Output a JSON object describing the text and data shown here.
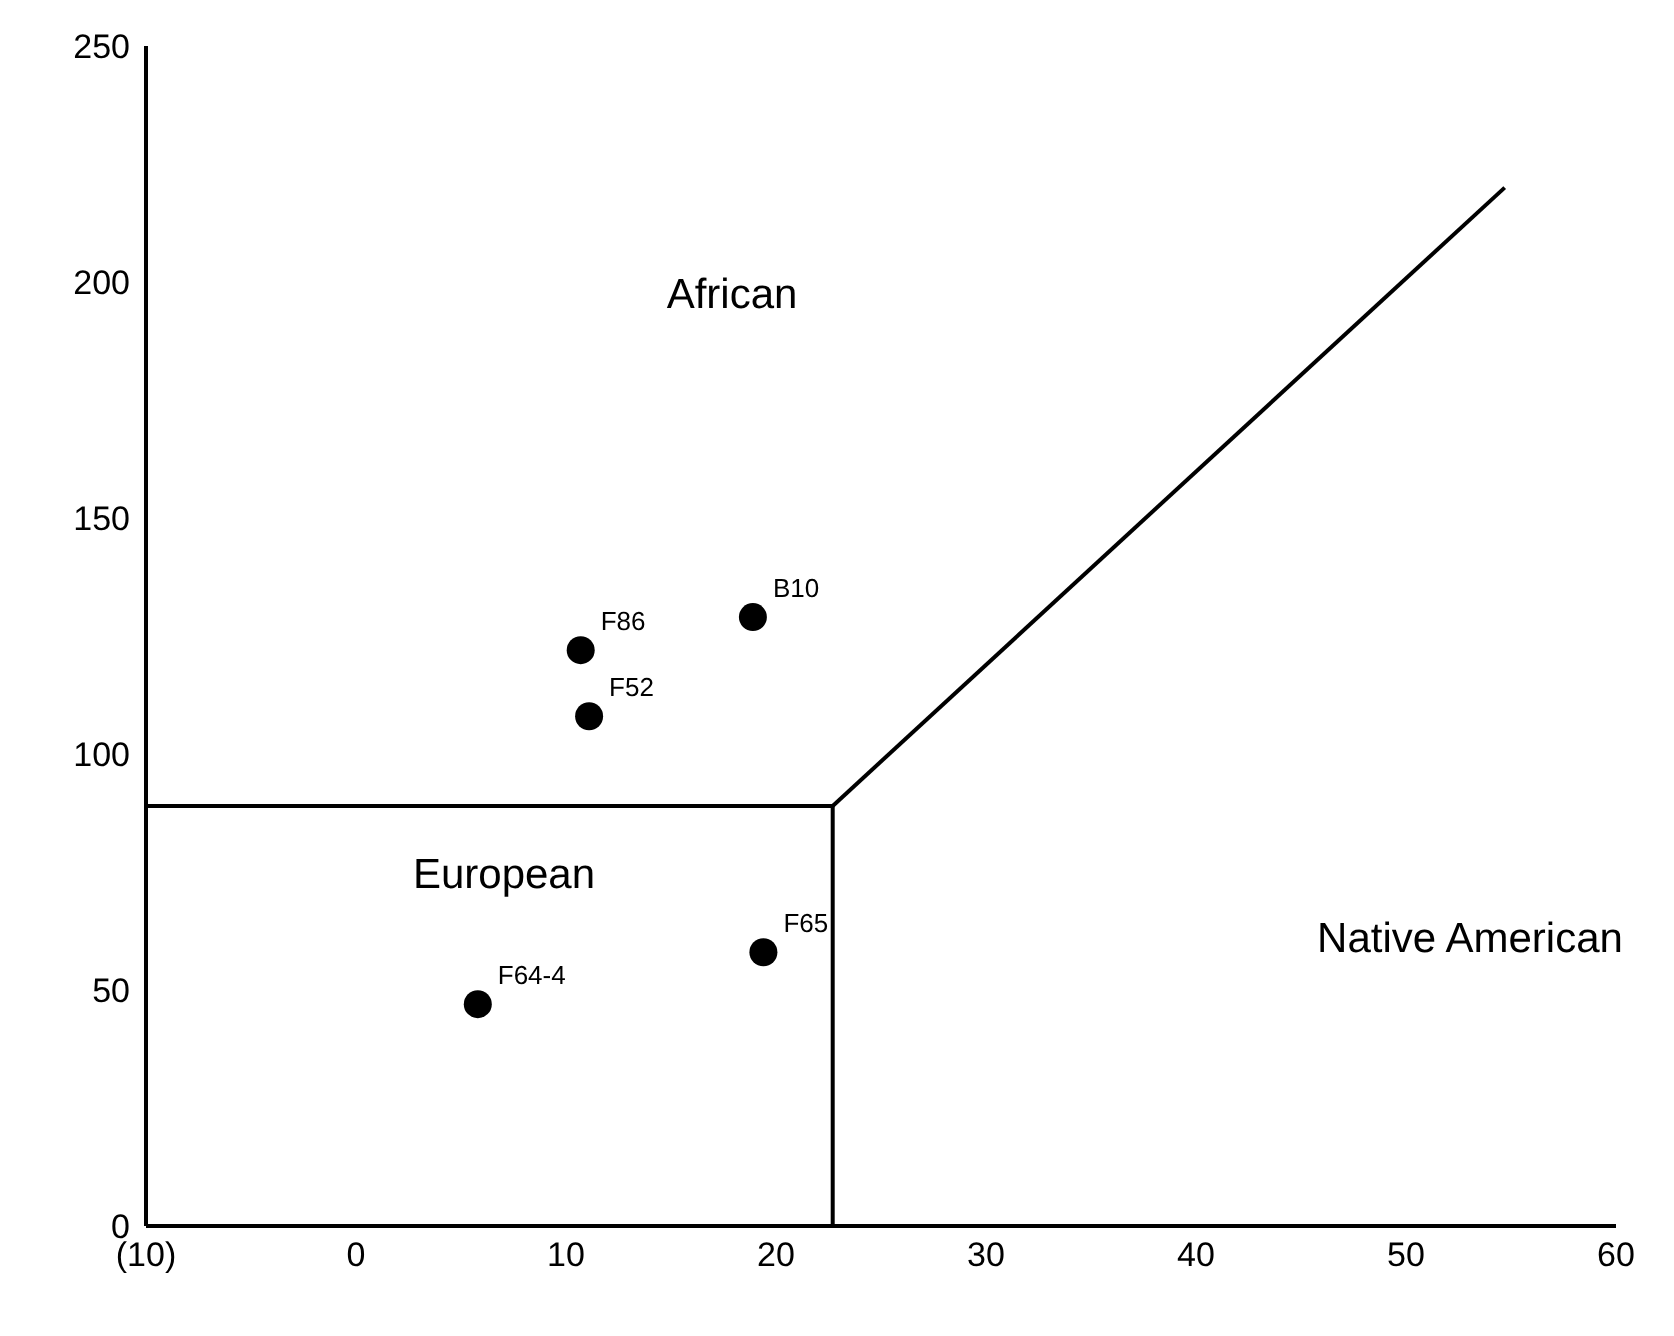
{
  "chart_data": {
    "type": "scatter",
    "xlim": [
      -10,
      60
    ],
    "xticks": [
      {
        "value": -10,
        "label": "(10)"
      },
      0,
      10,
      20,
      30,
      40,
      50,
      60
    ],
    "ylim": [
      0,
      250
    ],
    "yticks": [
      0,
      50,
      100,
      150,
      200,
      250
    ],
    "grid": false,
    "legend": false,
    "marker": "circle",
    "series": [
      {
        "color": "#000000",
        "x": [
          10.7,
          11.1,
          18.9,
          19.4,
          5.8
        ],
        "values": [
          122,
          108,
          129,
          58,
          47
        ]
      },
      {
        "type": "line",
        "color": "#000000",
        "marker": "none",
        "x": [
          -10,
          22.7,
          22.7
        ],
        "values": [
          89,
          89,
          0
        ]
      },
      {
        "type": "line",
        "color": "#000000",
        "marker": "none",
        "x": [
          22.7,
          54.7
        ],
        "values": [
          89,
          220
        ]
      }
    ],
    "annotations": [
      {
        "text": "F86",
        "x": 10.7,
        "y": 122
      },
      {
        "text": "F52",
        "x": 11.1,
        "y": 108
      },
      {
        "text": "B10",
        "x": 18.9,
        "y": 129
      },
      {
        "text": "F65",
        "x": 19.4,
        "y": 58
      },
      {
        "text": "F64-4",
        "x": 5.8,
        "y": 47
      },
      "African",
      "European",
      "Native American"
    ]
  }
}
